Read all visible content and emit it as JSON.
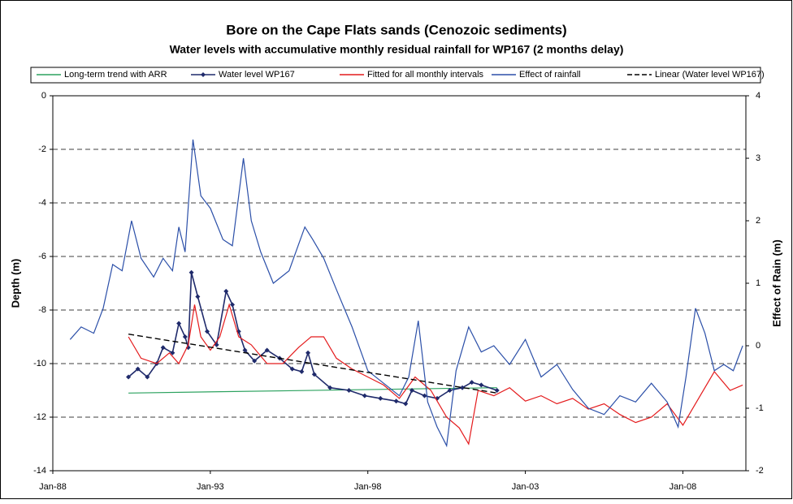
{
  "chart_data": {
    "type": "line",
    "title": "Bore on the Cape Flats sands (Cenozoic sediments)",
    "subtitle": "Water levels with accumulative monthly residual rainfall for WP167 (2 months delay)",
    "y_label": "Depth (m)",
    "y2_label": "Effect of Rain (m)",
    "legend": "top",
    "grid": true,
    "xlim": [
      1988,
      2010
    ],
    "xticks": [
      {
        "value": 1988,
        "label": "Jan-88"
      },
      {
        "value": 1993,
        "label": "Jan-93"
      },
      {
        "value": 1998,
        "label": "Jan-98"
      },
      {
        "value": 2003,
        "label": "Jan-03"
      },
      {
        "value": 2008,
        "label": "Jan-08"
      }
    ],
    "ylim": [
      -14,
      0
    ],
    "yticks": [
      -14,
      -12,
      -10,
      -8,
      -6,
      -4,
      -2,
      0
    ],
    "y2lim": [
      -2,
      4
    ],
    "y2ticks": [
      -2,
      -1,
      0,
      1,
      2,
      3,
      4
    ],
    "series": [
      {
        "name": "Long-term trend with ARR",
        "color": "#2ca25f",
        "style": "solid",
        "x": [
          1990.4,
          2002.1
        ],
        "values": [
          -11.1,
          -10.9
        ]
      },
      {
        "name": "Water level WP167",
        "color": "#1f2a6b",
        "style": "solid",
        "marker": "diamond",
        "x": [
          1990.4,
          1990.7,
          1991.0,
          1991.3,
          1991.5,
          1991.8,
          1992.0,
          1992.2,
          1992.3,
          1992.4,
          1992.6,
          1992.9,
          1993.2,
          1993.5,
          1993.7,
          1993.9,
          1994.1,
          1994.4,
          1994.8,
          1995.2,
          1995.6,
          1995.9,
          1996.1,
          1996.3,
          1996.8,
          1997.4,
          1997.9,
          1998.4,
          1998.9,
          1999.2,
          1999.4,
          1999.8,
          2000.2,
          2000.6,
          2001.0,
          2001.3,
          2001.6,
          2002.1
        ],
        "values": [
          -10.5,
          -10.2,
          -10.5,
          -10.0,
          -9.4,
          -9.6,
          -8.5,
          -9.0,
          -9.4,
          -6.6,
          -7.5,
          -8.8,
          -9.3,
          -7.3,
          -7.8,
          -8.8,
          -9.5,
          -9.9,
          -9.5,
          -9.8,
          -10.2,
          -10.3,
          -9.6,
          -10.4,
          -10.9,
          -11.0,
          -11.2,
          -11.3,
          -11.4,
          -11.5,
          -11.0,
          -11.2,
          -11.3,
          -11.0,
          -10.9,
          -10.7,
          -10.8,
          -11.0
        ]
      },
      {
        "name": "Fitted for all monthly intervals",
        "color": "#e41a1c",
        "style": "solid",
        "x": [
          1990.4,
          1990.8,
          1991.3,
          1991.7,
          1992.0,
          1992.3,
          1992.5,
          1992.7,
          1993.0,
          1993.3,
          1993.6,
          1993.9,
          1994.3,
          1994.8,
          1995.3,
          1995.8,
          1996.2,
          1996.6,
          1997.0,
          1997.5,
          1998.0,
          1998.5,
          1999.0,
          1999.5,
          2000.0,
          2000.5,
          2000.9,
          2001.2,
          2001.5,
          2002.0,
          2002.5,
          2003.0,
          2003.5,
          2004.0,
          2004.5,
          2005.0,
          2005.5,
          2006.0,
          2006.5,
          2007.0,
          2007.5,
          2008.0,
          2008.5,
          2009.0,
          2009.5,
          2009.9
        ],
        "values": [
          -9.0,
          -9.8,
          -10.0,
          -9.6,
          -10.0,
          -9.3,
          -7.8,
          -9.0,
          -9.5,
          -9.0,
          -7.8,
          -9.0,
          -9.3,
          -10.0,
          -10.0,
          -9.4,
          -9.0,
          -9.0,
          -9.8,
          -10.2,
          -10.5,
          -10.8,
          -11.3,
          -10.5,
          -11.0,
          -12.0,
          -12.4,
          -13.0,
          -11.0,
          -11.2,
          -10.9,
          -11.4,
          -11.2,
          -11.5,
          -11.3,
          -11.7,
          -11.5,
          -11.9,
          -12.2,
          -12.0,
          -11.5,
          -12.3,
          -11.3,
          -10.3,
          -11.0,
          -10.8
        ]
      },
      {
        "name": "Effect of rainfall",
        "color": "#2b4fa8",
        "style": "solid",
        "axis": "y2",
        "x": [
          1988.55,
          1988.9,
          1989.3,
          1989.6,
          1989.9,
          1990.2,
          1990.5,
          1990.8,
          1991.2,
          1991.5,
          1991.8,
          1992.0,
          1992.2,
          1992.45,
          1992.7,
          1993.0,
          1993.4,
          1993.7,
          1994.05,
          1994.3,
          1994.6,
          1995.0,
          1995.5,
          1996.0,
          1996.25,
          1996.6,
          1997.0,
          1997.5,
          1998.0,
          1998.5,
          1999.0,
          1999.3,
          1999.6,
          1999.9,
          2000.2,
          2000.5,
          2000.8,
          2001.2,
          2001.6,
          2002.0,
          2002.5,
          2003.0,
          2003.5,
          2004.0,
          2004.5,
          2005.0,
          2005.5,
          2006.0,
          2006.5,
          2007.0,
          2007.5,
          2007.85,
          2008.1,
          2008.4,
          2008.7,
          2009.0,
          2009.3,
          2009.6,
          2009.9
        ],
        "values": [
          0.1,
          0.3,
          0.2,
          0.6,
          1.3,
          1.2,
          2.0,
          1.4,
          1.1,
          1.4,
          1.2,
          1.9,
          1.5,
          3.3,
          2.4,
          2.2,
          1.7,
          1.6,
          3.0,
          2.0,
          1.5,
          1.0,
          1.2,
          1.9,
          1.7,
          1.4,
          0.9,
          0.3,
          -0.4,
          -0.6,
          -0.8,
          -0.5,
          0.4,
          -0.9,
          -1.3,
          -1.6,
          -0.4,
          0.3,
          -0.1,
          0.0,
          -0.3,
          0.1,
          -0.5,
          -0.3,
          -0.7,
          -1.0,
          -1.1,
          -0.8,
          -0.9,
          -0.6,
          -0.9,
          -1.3,
          -0.5,
          0.6,
          0.2,
          -0.4,
          -0.3,
          -0.4,
          0.0
        ]
      },
      {
        "name": "Linear (Water level WP167)",
        "color": "#000000",
        "style": "dashed",
        "x": [
          1990.4,
          2002.1
        ],
        "values": [
          -8.9,
          -11.1
        ]
      }
    ]
  }
}
